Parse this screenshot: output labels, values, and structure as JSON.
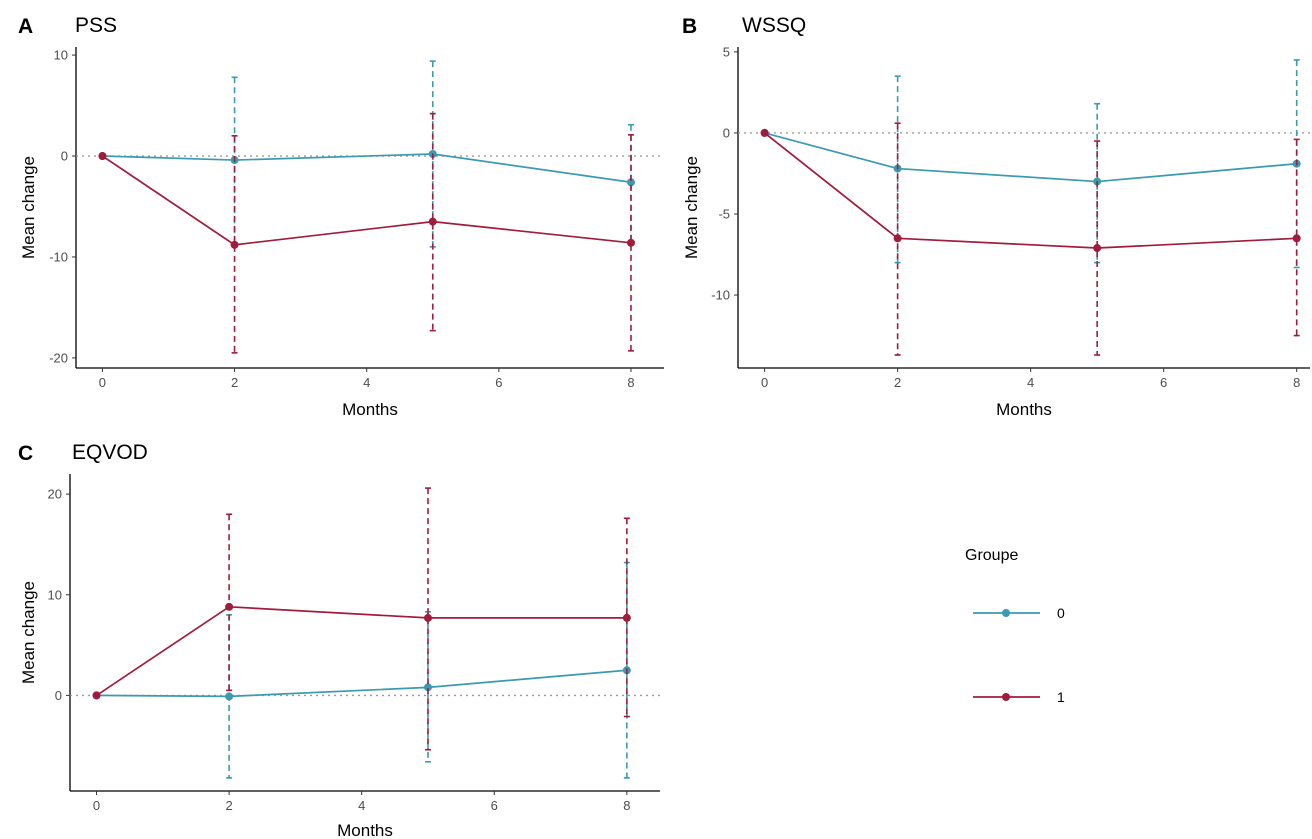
{
  "legend": {
    "title": "Groupe",
    "entries": [
      {
        "label": "0",
        "color": "#3a9ab0"
      },
      {
        "label": "1",
        "color": "#a01c3c"
      }
    ]
  },
  "chart_data": [
    {
      "type": "line",
      "panel_letter": "A",
      "title": "PSS",
      "xlabel": "Months",
      "ylabel": "Mean change",
      "xlim": [
        -0.4,
        8.5
      ],
      "ylim": [
        -21,
        10.8
      ],
      "xticks": [
        0,
        2,
        4,
        6,
        8
      ],
      "yticks": [
        10,
        0,
        -10,
        -20
      ],
      "x": [
        0,
        2,
        5,
        8
      ],
      "reference_line": 0,
      "series": [
        {
          "name": "0",
          "color": "#3a9ab0",
          "values": [
            0,
            -0.4,
            0.2,
            -2.6
          ],
          "error_low": [
            0,
            -8.6,
            -9.0,
            -8.4
          ],
          "error_high": [
            0,
            7.8,
            9.4,
            3.1
          ]
        },
        {
          "name": "1",
          "color": "#a01c3c",
          "values": [
            0,
            -8.8,
            -6.5,
            -8.6
          ],
          "error_low": [
            0,
            -19.5,
            -17.3,
            -19.3
          ],
          "error_high": [
            0,
            2.0,
            4.2,
            2.1
          ]
        }
      ]
    },
    {
      "type": "line",
      "panel_letter": "B",
      "title": "WSSQ",
      "xlabel": "Months",
      "ylabel": "Mean change",
      "xlim": [
        -0.4,
        8.2
      ],
      "ylim": [
        -14.5,
        5.3
      ],
      "xticks": [
        0,
        2,
        4,
        6,
        8
      ],
      "yticks": [
        5,
        0,
        -5,
        -10
      ],
      "x": [
        0,
        2,
        5,
        8
      ],
      "reference_line": 0,
      "series": [
        {
          "name": "0",
          "color": "#3a9ab0",
          "values": [
            0,
            -2.2,
            -3.0,
            -1.9
          ],
          "error_low": [
            0,
            -8.0,
            -8.0,
            -8.3
          ],
          "error_high": [
            0,
            3.5,
            1.8,
            4.5
          ]
        },
        {
          "name": "1",
          "color": "#a01c3c",
          "values": [
            0,
            -6.5,
            -7.1,
            -6.5
          ],
          "error_low": [
            0,
            -13.7,
            -13.7,
            -12.5
          ],
          "error_high": [
            0,
            0.6,
            -0.5,
            -0.4
          ]
        }
      ]
    },
    {
      "type": "line",
      "panel_letter": "C",
      "title": "EQVOD",
      "xlabel": "Months",
      "ylabel": "Mean change",
      "xlim": [
        -0.4,
        8.5
      ],
      "ylim": [
        -9.5,
        22
      ],
      "xticks": [
        0,
        2,
        4,
        6,
        8
      ],
      "yticks": [
        20,
        10,
        0
      ],
      "x": [
        0,
        2,
        5,
        8
      ],
      "reference_line": 0,
      "series": [
        {
          "name": "0",
          "color": "#3a9ab0",
          "values": [
            0,
            -0.1,
            0.8,
            2.5
          ],
          "error_low": [
            0,
            -8.2,
            -6.6,
            -8.2
          ],
          "error_high": [
            0,
            8.0,
            8.3,
            13.2
          ]
        },
        {
          "name": "1",
          "color": "#a01c3c",
          "values": [
            0,
            8.8,
            7.7,
            7.7
          ],
          "error_low": [
            0,
            0.5,
            -5.4,
            -2.1
          ],
          "error_high": [
            0,
            18.0,
            20.6,
            17.6
          ]
        }
      ]
    }
  ]
}
